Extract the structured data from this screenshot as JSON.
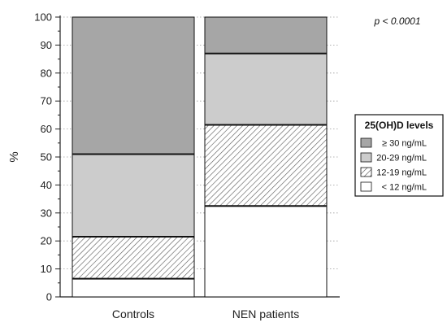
{
  "chart_data": {
    "type": "bar",
    "stacked": true,
    "categories": [
      "Controls",
      "NEN patients"
    ],
    "ylabel": "%",
    "xlabel": "",
    "ylim": [
      0,
      100
    ],
    "yticks": [
      0,
      10,
      20,
      30,
      40,
      50,
      60,
      70,
      80,
      90,
      100
    ],
    "annotation": "p < 0.0001",
    "legend": {
      "title": "25(OH)D levels",
      "placement": "right"
    },
    "series": [
      {
        "name": "< 12 ng/mL",
        "values": [
          6.5,
          32.5
        ],
        "fill": "#ffffff",
        "pattern": "none"
      },
      {
        "name": "12-19 ng/mL",
        "values": [
          15.0,
          29.0
        ],
        "fill": "#ffffff",
        "pattern": "hatch"
      },
      {
        "name": "20-29 ng/mL",
        "values": [
          29.5,
          25.5
        ],
        "fill": "#cccccc",
        "pattern": "none"
      },
      {
        "name": "≥ 30 ng/mL",
        "values": [
          49.0,
          13.0
        ],
        "fill": "#a6a6a6",
        "pattern": "none"
      }
    ],
    "legend_order": [
      3,
      2,
      1,
      0
    ]
  }
}
